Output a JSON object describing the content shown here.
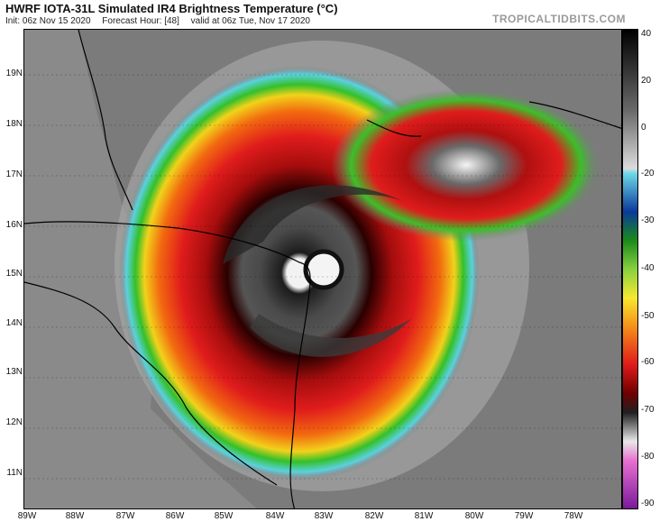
{
  "header": {
    "title": "HWRF IOTA-31L Simulated IR4 Brightness Temperature (°C)",
    "init": "Init: 06z Nov 15 2020",
    "forecast": "Forecast Hour: [48]",
    "valid": "valid at 06z Tue, Nov 17 2020",
    "brand": "TROPICALTIDBITS.COM"
  },
  "map": {
    "lat_labels": [
      "19N",
      "18N",
      "17N",
      "16N",
      "15N",
      "14N",
      "13N",
      "12N",
      "11N"
    ],
    "lon_labels": [
      "89W",
      "88W",
      "87W",
      "86W",
      "85W",
      "84W",
      "83W",
      "82W",
      "81W",
      "80W",
      "79W",
      "78W"
    ],
    "storm_center": {
      "lat": 15.0,
      "lon": -83.1
    }
  },
  "colorbar": {
    "labels": [
      "40",
      "20",
      "0",
      "-20",
      "-30",
      "-40",
      "-50",
      "-60",
      "-70",
      "-80",
      "-90"
    ]
  }
}
